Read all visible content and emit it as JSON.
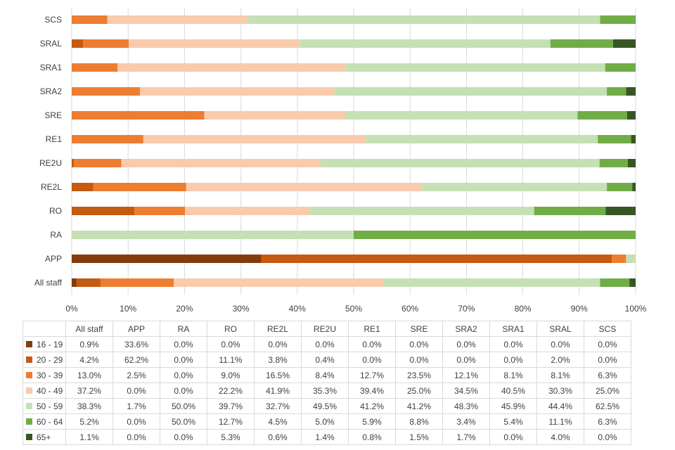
{
  "chart_data": {
    "type": "bar",
    "orientation": "horizontal",
    "stacked": "percent",
    "categories": [
      "All staff",
      "APP",
      "RA",
      "RO",
      "RE2L",
      "RE2U",
      "RE1",
      "SRE",
      "SRA2",
      "SRA1",
      "SRAL",
      "SCS"
    ],
    "xlim": [
      0,
      100
    ],
    "x_ticks": [
      "0%",
      "10%",
      "20%",
      "30%",
      "40%",
      "50%",
      "60%",
      "70%",
      "80%",
      "90%",
      "100%"
    ],
    "grid": true,
    "legend_placement": "table-row-headers",
    "series": [
      {
        "name": "16 - 19",
        "color": "#843c0c",
        "values": [
          0.9,
          33.6,
          0.0,
          0.0,
          0.0,
          0.0,
          0.0,
          0.0,
          0.0,
          0.0,
          0.0,
          0.0
        ],
        "labels": [
          "0.9%",
          "33.6%",
          "0.0%",
          "0.0%",
          "0.0%",
          "0.0%",
          "0.0%",
          "0.0%",
          "0.0%",
          "0.0%",
          "0.0%",
          "0.0%"
        ]
      },
      {
        "name": "20 - 29",
        "color": "#c55a11",
        "values": [
          4.2,
          62.2,
          0.0,
          11.1,
          3.8,
          0.4,
          0.0,
          0.0,
          0.0,
          0.0,
          2.0,
          0.0
        ],
        "labels": [
          "4.2%",
          "62.2%",
          "0.0%",
          "11.1%",
          "3.8%",
          "0.4%",
          "0.0%",
          "0.0%",
          "0.0%",
          "0.0%",
          "2.0%",
          "0.0%"
        ]
      },
      {
        "name": "30 - 39",
        "color": "#ed7d31",
        "values": [
          13.0,
          2.5,
          0.0,
          9.0,
          16.5,
          8.4,
          12.7,
          23.5,
          12.1,
          8.1,
          8.1,
          6.3
        ],
        "labels": [
          "13.0%",
          "2.5%",
          "0.0%",
          "9.0%",
          "16.5%",
          "8.4%",
          "12.7%",
          "23.5%",
          "12.1%",
          "8.1%",
          "8.1%",
          "6.3%"
        ]
      },
      {
        "name": "40 - 49",
        "color": "#f8cbad",
        "values": [
          37.2,
          0.0,
          0.0,
          22.2,
          41.9,
          35.3,
          39.4,
          25.0,
          34.5,
          40.5,
          30.3,
          25.0
        ],
        "labels": [
          "37.2%",
          "0.0%",
          "0.0%",
          "22.2%",
          "41.9%",
          "35.3%",
          "39.4%",
          "25.0%",
          "34.5%",
          "40.5%",
          "30.3%",
          "25.0%"
        ]
      },
      {
        "name": "50 - 59",
        "color": "#c5e0b4",
        "values": [
          38.3,
          1.7,
          50.0,
          39.7,
          32.7,
          49.5,
          41.2,
          41.2,
          48.3,
          45.9,
          44.4,
          62.5
        ],
        "labels": [
          "38.3%",
          "1.7%",
          "50.0%",
          "39.7%",
          "32.7%",
          "49.5%",
          "41.2%",
          "41.2%",
          "48.3%",
          "45.9%",
          "44.4%",
          "62.5%"
        ]
      },
      {
        "name": "60 - 64",
        "color": "#70ad47",
        "values": [
          5.2,
          0.0,
          50.0,
          12.7,
          4.5,
          5.0,
          5.9,
          8.8,
          3.4,
          5.4,
          11.1,
          6.3
        ],
        "labels": [
          "5.2%",
          "0.0%",
          "50.0%",
          "12.7%",
          "4.5%",
          "5.0%",
          "5.9%",
          "8.8%",
          "3.4%",
          "5.4%",
          "11.1%",
          "6.3%"
        ]
      },
      {
        "name": "65+",
        "color": "#375623",
        "values": [
          1.1,
          0.0,
          0.0,
          5.3,
          0.6,
          1.4,
          0.8,
          1.5,
          1.7,
          0.0,
          4.0,
          0.0
        ],
        "labels": [
          "1.1%",
          "0.0%",
          "0.0%",
          "5.3%",
          "0.6%",
          "1.4%",
          "0.8%",
          "1.5%",
          "1.7%",
          "0.0%",
          "4.0%",
          "0.0%"
        ]
      }
    ]
  }
}
